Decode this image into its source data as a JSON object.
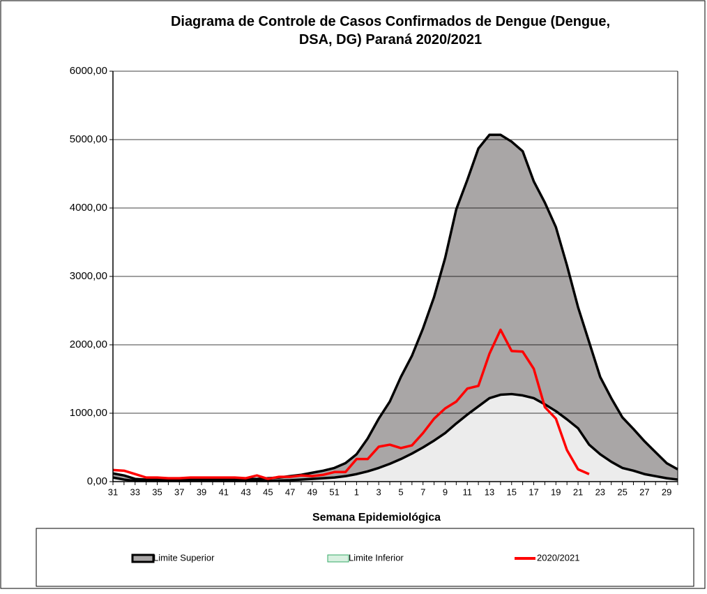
{
  "chart_data": {
    "type": "area-line",
    "title": "Diagrama de Controle de Casos Confirmados de Dengue (Dengue, DSA, DG) Paraná 2020/2021",
    "x_label": "Semana Epidemiológica",
    "categories": [
      "31",
      null,
      "33",
      null,
      "35",
      null,
      "37",
      null,
      "39",
      null,
      "41",
      null,
      "43",
      null,
      "45",
      null,
      "47",
      null,
      "49",
      null,
      "51",
      null,
      "1",
      null,
      "3",
      null,
      "5",
      null,
      "7",
      null,
      "9",
      null,
      "11",
      null,
      "13",
      null,
      "15",
      null,
      "17",
      null,
      "19",
      null,
      "21",
      null,
      "23",
      null,
      "25",
      null,
      "27",
      null,
      "29",
      null
    ],
    "ylim": [
      0,
      6000
    ],
    "yticks": [
      {
        "value": 0,
        "label": "0,00"
      },
      {
        "value": 1000,
        "label": "1000,00"
      },
      {
        "value": 2000,
        "label": "2000,00"
      },
      {
        "value": 3000,
        "label": "3000,00"
      },
      {
        "value": 4000,
        "label": "4000,00"
      },
      {
        "value": 5000,
        "label": "5000,00"
      },
      {
        "value": 6000,
        "label": "6000,00"
      }
    ],
    "grid": true,
    "series": [
      {
        "name": "Limite Superior",
        "kind": "area",
        "color": "#a9a6a6",
        "edge": "#000000",
        "values": [
          120,
          90,
          40,
          30,
          30,
          30,
          40,
          40,
          40,
          40,
          40,
          40,
          40,
          40,
          50,
          60,
          80,
          100,
          130,
          160,
          200,
          270,
          400,
          630,
          920,
          1170,
          1530,
          1840,
          2240,
          2700,
          3270,
          3980,
          4410,
          4870,
          5070,
          5070,
          4970,
          4830,
          4390,
          4080,
          3720,
          3160,
          2550,
          2040,
          1530,
          1220,
          940,
          770,
          590,
          430,
          270,
          180
        ]
      },
      {
        "name": "Limite Inferior",
        "kind": "area",
        "color": "#ececec",
        "edge": "#000000",
        "legend_edge": "#33aa66",
        "legend_fill": "#d8f0e0",
        "values": [
          60,
          30,
          10,
          10,
          10,
          10,
          10,
          10,
          10,
          10,
          10,
          10,
          10,
          10,
          10,
          15,
          20,
          30,
          40,
          50,
          60,
          80,
          110,
          150,
          200,
          260,
          330,
          410,
          500,
          600,
          710,
          850,
          980,
          1100,
          1220,
          1270,
          1280,
          1260,
          1220,
          1130,
          1030,
          910,
          780,
          540,
          400,
          290,
          200,
          160,
          110,
          80,
          50,
          30
        ]
      },
      {
        "name": "2020/2021",
        "kind": "line",
        "color": "#ff0000",
        "values": [
          170,
          160,
          110,
          60,
          60,
          50,
          50,
          60,
          60,
          60,
          60,
          60,
          50,
          90,
          40,
          70,
          70,
          90,
          80,
          100,
          140,
          140,
          330,
          330,
          510,
          540,
          490,
          530,
          710,
          920,
          1070,
          1170,
          1360,
          1400,
          1870,
          2220,
          1910,
          1900,
          1650,
          1090,
          920,
          460,
          180,
          110,
          null,
          null,
          null,
          null,
          null,
          null,
          null,
          null
        ]
      }
    ]
  }
}
